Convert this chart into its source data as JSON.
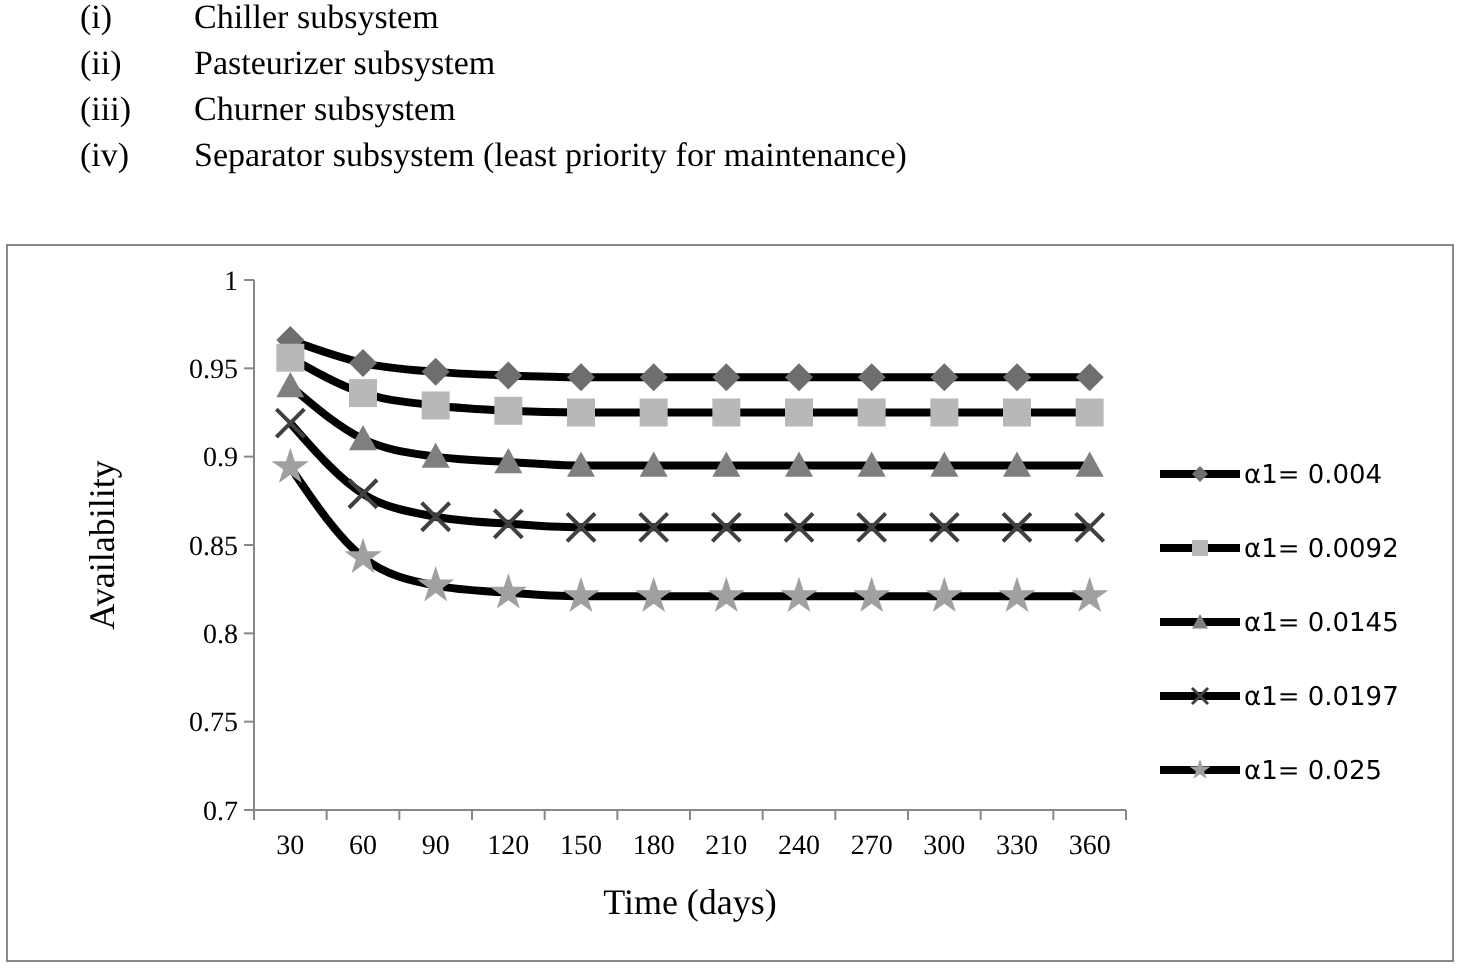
{
  "chart_data": {
    "type": "line",
    "xlabel": "Time (days)",
    "ylabel": "Availability",
    "annotations": [
      "(i) Chiller subsystem",
      "(ii) Pasteurizer subsystem",
      "(iii) Churner subsystem",
      "(iv) Separator subsystem (least priority for maintenance)"
    ],
    "categories": [
      "30",
      "60",
      "90",
      "120",
      "150",
      "180",
      "210",
      "240",
      "270",
      "300",
      "330",
      "360"
    ],
    "ylim": [
      0.7,
      1
    ],
    "yticks": [
      {
        "value": 0.7,
        "label": "0.7"
      },
      {
        "value": 0.75,
        "label": "0.75"
      },
      {
        "value": 0.8,
        "label": "0.8"
      },
      {
        "value": 0.85,
        "label": "0.85"
      },
      {
        "value": 0.9,
        "label": "0.9"
      },
      {
        "value": 0.95,
        "label": "0.95"
      },
      {
        "value": 1,
        "label": "1"
      }
    ],
    "grid": false,
    "legend": "right",
    "line_style": "solid",
    "series": [
      {
        "name": "α1= 0.004",
        "color": "#6e6e6e",
        "marker": "diamond",
        "values": [
          0.966,
          0.953,
          0.948,
          0.946,
          0.945,
          0.945,
          0.945,
          0.945,
          0.945,
          0.945,
          0.945,
          0.945
        ]
      },
      {
        "name": "α1= 0.0092",
        "color": "#b8b8b8",
        "marker": "square",
        "values": [
          0.956,
          0.936,
          0.929,
          0.926,
          0.925,
          0.925,
          0.925,
          0.925,
          0.925,
          0.925,
          0.925,
          0.925
        ]
      },
      {
        "name": "α1= 0.0145",
        "color": "#7f7f7f",
        "marker": "triangle",
        "values": [
          0.94,
          0.91,
          0.9,
          0.897,
          0.895,
          0.895,
          0.895,
          0.895,
          0.895,
          0.895,
          0.895,
          0.895
        ]
      },
      {
        "name": "α1= 0.0197",
        "color": "#404040",
        "marker": "cross",
        "values": [
          0.919,
          0.879,
          0.866,
          0.862,
          0.86,
          0.86,
          0.86,
          0.86,
          0.86,
          0.86,
          0.86,
          0.86
        ]
      },
      {
        "name": "α1= 0.025",
        "color": "#a0a0a0",
        "marker": "star",
        "values": [
          0.894,
          0.843,
          0.827,
          0.823,
          0.821,
          0.821,
          0.821,
          0.821,
          0.821,
          0.821,
          0.821,
          0.821
        ]
      }
    ]
  }
}
